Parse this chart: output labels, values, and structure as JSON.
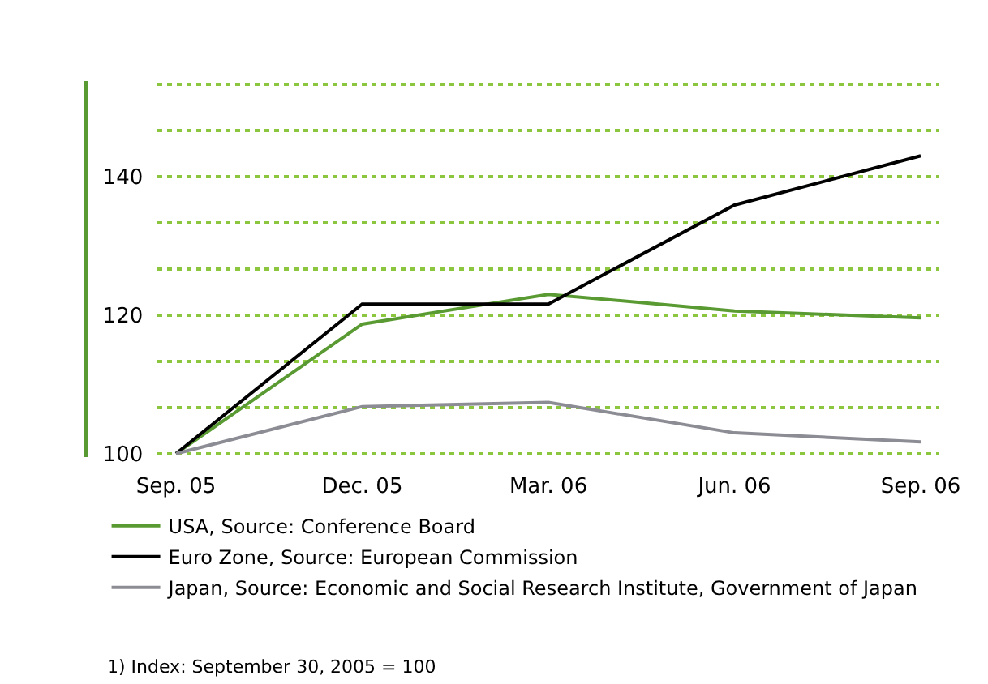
{
  "chart_data": {
    "type": "line",
    "categories": [
      "Sep. 05",
      "Dec. 05",
      "Mar. 06",
      "Jun. 06",
      "Sep. 06"
    ],
    "series": [
      {
        "name": "USA, Source: Conference Board",
        "color": "#5a9a32",
        "values": [
          100,
          118.7,
          123.0,
          120.6,
          119.6
        ]
      },
      {
        "name": "Euro Zone, Source: European Commission",
        "color": "#000000",
        "values": [
          100,
          121.6,
          121.6,
          135.9,
          143.0
        ]
      },
      {
        "name": "Japan, Source: Economic and Social Research Institute, Government of Japan",
        "color": "#8c8c94",
        "values": [
          100,
          106.8,
          107.4,
          103.0,
          101.7
        ]
      }
    ],
    "ylim": [
      99.5,
      153.8
    ],
    "yticks": [
      100,
      {
        "value": 106.67,
        "label": null
      },
      {
        "value": 113.33,
        "label": null
      },
      120,
      {
        "value": 126.67,
        "label": null
      },
      {
        "value": 133.33,
        "label": null
      },
      140,
      {
        "value": 146.67,
        "label": null
      },
      {
        "value": 153.33,
        "label": null
      }
    ],
    "grid": "y",
    "legend": "bottom",
    "marker": "none",
    "line_style": "solid",
    "annotations": [
      "1) Index: September 30, 2005 = 100"
    ]
  }
}
